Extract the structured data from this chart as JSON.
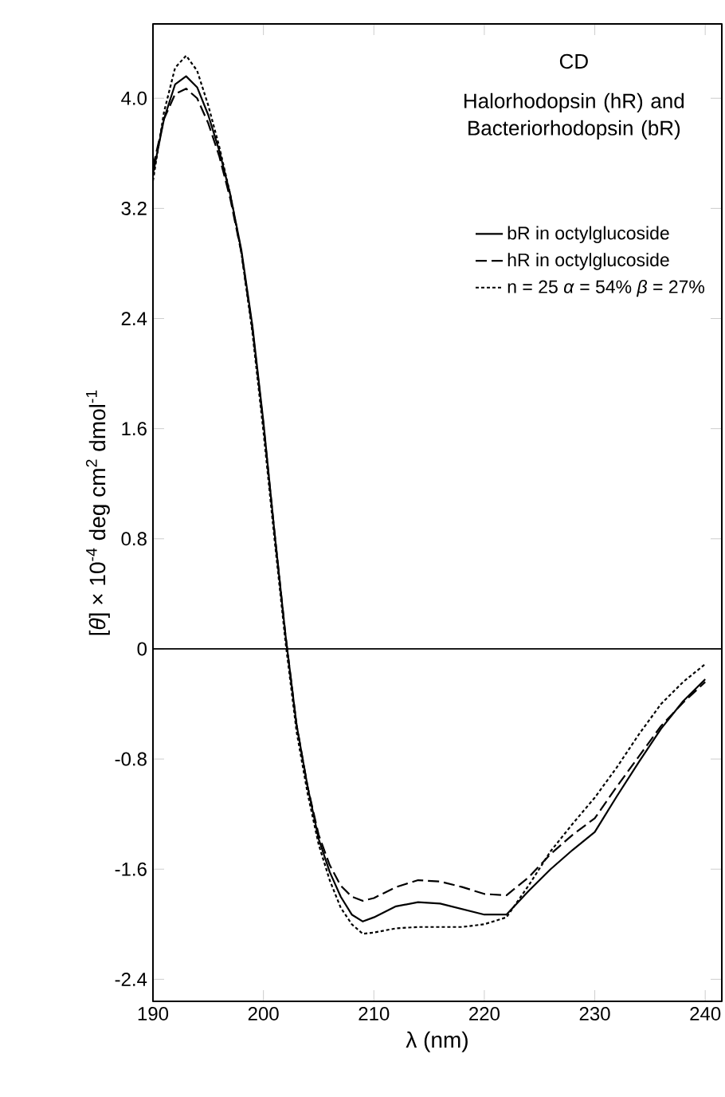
{
  "chart_data": {
    "type": "line",
    "title": "CD",
    "subtitle": "Halorhodopsin (hR) and Bacteriorhodopsin (bR)",
    "xlabel": "λ (nm)",
    "ylabel": "[*θ*] × 10$^{-4}$ deg cm$^{2}$ dmol$^{-1}$",
    "x": [
      190,
      191,
      192,
      193,
      194,
      195,
      196,
      197,
      198,
      199,
      200,
      201,
      202,
      203,
      204,
      205,
      206,
      207,
      208,
      209,
      210,
      212,
      214,
      216,
      218,
      220,
      222,
      224,
      226,
      228,
      230,
      232,
      234,
      236,
      238,
      240
    ],
    "series": [
      {
        "name": "bR in octylglucoside",
        "color": "#000000",
        "line_style": "solid",
        "values": [
          3.45,
          3.85,
          4.1,
          4.16,
          4.08,
          3.88,
          3.62,
          3.3,
          2.9,
          2.35,
          1.65,
          0.85,
          0.1,
          -0.55,
          -1.0,
          -1.38,
          -1.62,
          -1.8,
          -1.93,
          -1.98,
          -1.95,
          -1.87,
          -1.84,
          -1.85,
          -1.89,
          -1.93,
          -1.93,
          -1.76,
          -1.6,
          -1.46,
          -1.33,
          -1.07,
          -0.82,
          -0.58,
          -0.38,
          -0.22
        ]
      },
      {
        "name": "hR in octylglucoside",
        "color": "#000000",
        "line_style": "dashed",
        "values": [
          3.5,
          3.85,
          4.03,
          4.07,
          4.0,
          3.82,
          3.58,
          3.27,
          2.88,
          2.33,
          1.63,
          0.85,
          0.1,
          -0.55,
          -1.0,
          -1.35,
          -1.57,
          -1.72,
          -1.8,
          -1.83,
          -1.81,
          -1.73,
          -1.68,
          -1.69,
          -1.73,
          -1.78,
          -1.79,
          -1.66,
          -1.49,
          -1.35,
          -1.23,
          -1.0,
          -0.78,
          -0.56,
          -0.39,
          -0.24
        ]
      },
      {
        "name": "n = 25 *α* = 54% *β* = 27%",
        "color": "#000000",
        "line_style": "dotted",
        "values": [
          3.4,
          3.9,
          4.22,
          4.31,
          4.2,
          3.95,
          3.65,
          3.3,
          2.88,
          2.3,
          1.58,
          0.8,
          0.05,
          -0.6,
          -1.05,
          -1.42,
          -1.68,
          -1.88,
          -2.0,
          -2.07,
          -2.06,
          -2.03,
          -2.02,
          -2.02,
          -2.02,
          -2.0,
          -1.95,
          -1.72,
          -1.47,
          -1.27,
          -1.08,
          -0.86,
          -0.62,
          -0.4,
          -0.24,
          -0.11
        ]
      }
    ],
    "xlim": [
      190,
      241.5
    ],
    "ylim": [
      -2.56,
      4.54
    ],
    "xticks": [
      190,
      200,
      210,
      220,
      230,
      240
    ],
    "yticks": [
      {
        "value": -2.4,
        "label": "-2.4"
      },
      {
        "value": -1.6,
        "label": "-1.6"
      },
      {
        "value": -0.8,
        "label": "-0.8"
      },
      0,
      0.8,
      1.6,
      2.4,
      3.2,
      {
        "value": 4.0,
        "label": "4.0"
      }
    ],
    "ref_lines": [
      {
        "axis": "y",
        "value": 0,
        "color": "#000000"
      }
    ],
    "grid": false,
    "legend": "top right",
    "marker": "none"
  }
}
